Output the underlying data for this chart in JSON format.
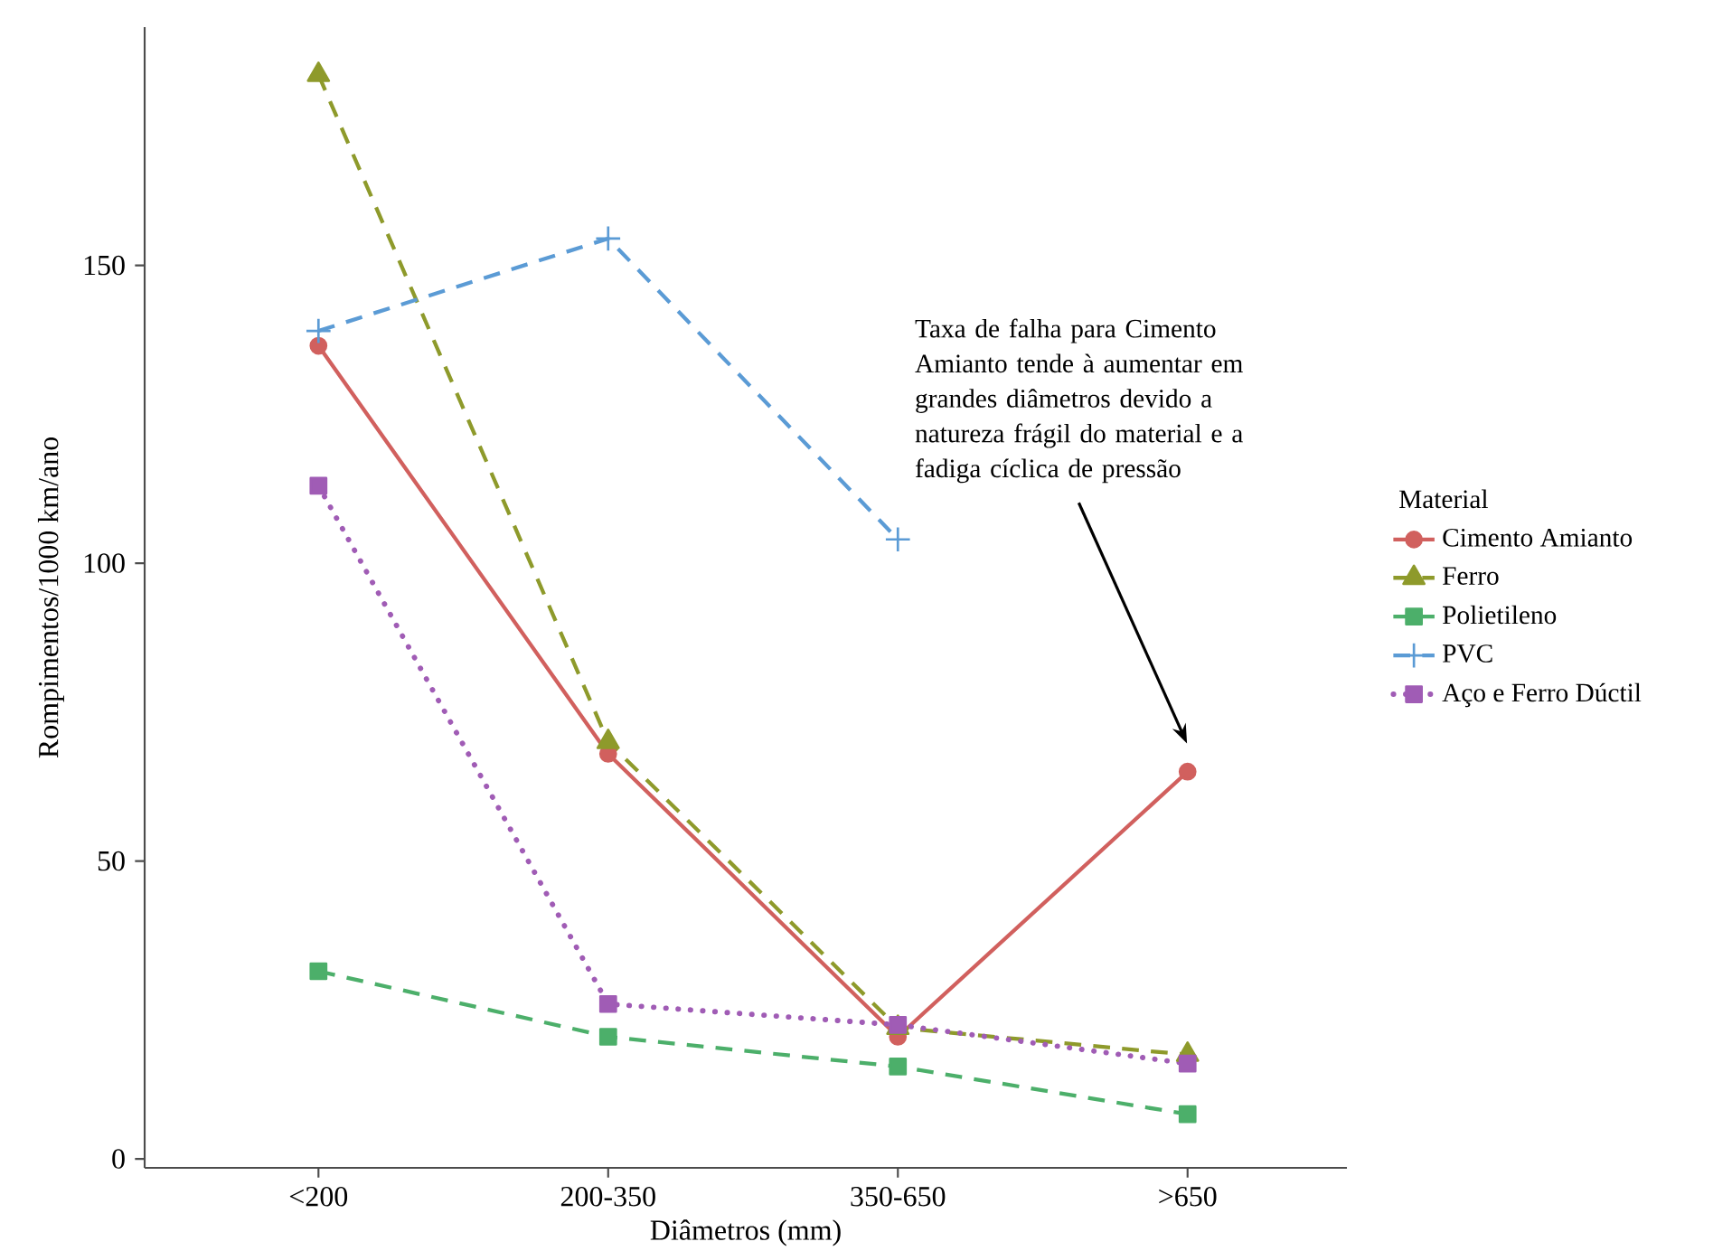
{
  "chart_data": {
    "type": "line",
    "xlabel": "Diâmetros (mm)",
    "ylabel": "Rompimentos/1000 km/ano",
    "legend_title": "Material",
    "legend": "right",
    "grid": false,
    "categories": [
      "<200",
      "200-350",
      "350-650",
      ">650"
    ],
    "ylim": [
      -1.5,
      190
    ],
    "yticks": [
      0,
      50,
      100,
      150
    ],
    "series": [
      {
        "name": "Cimento Amianto",
        "color": "#d1605e",
        "marker": "circle",
        "line_style": "solid",
        "values": [
          136.5,
          68,
          20.5,
          65
        ]
      },
      {
        "name": "Ferro",
        "color": "#8e9a2b",
        "marker": "triangle",
        "line_style": "dashed",
        "values": [
          182,
          70,
          22,
          17.5
        ]
      },
      {
        "name": "Polietileno",
        "color": "#4caf6a",
        "marker": "square",
        "line_style": "dashed",
        "values": [
          31.5,
          20.5,
          15.5,
          7.5
        ]
      },
      {
        "name": "PVC",
        "color": "#5b9bd5",
        "marker": "cross",
        "line_style": "dashed",
        "values": [
          139,
          154.5,
          104,
          null
        ]
      },
      {
        "name": "Aço e Ferro Dúctil",
        "color": "#a05cb5",
        "marker": "square",
        "line_style": "dotted",
        "values": [
          113,
          26,
          22.5,
          16
        ]
      }
    ],
    "annotations": [
      "Taxa de falha para Cimento Amianto tende à aumentar em grandes diâmetros devido a natureza frágil do material e a fadiga cíclica de pressão"
    ]
  }
}
